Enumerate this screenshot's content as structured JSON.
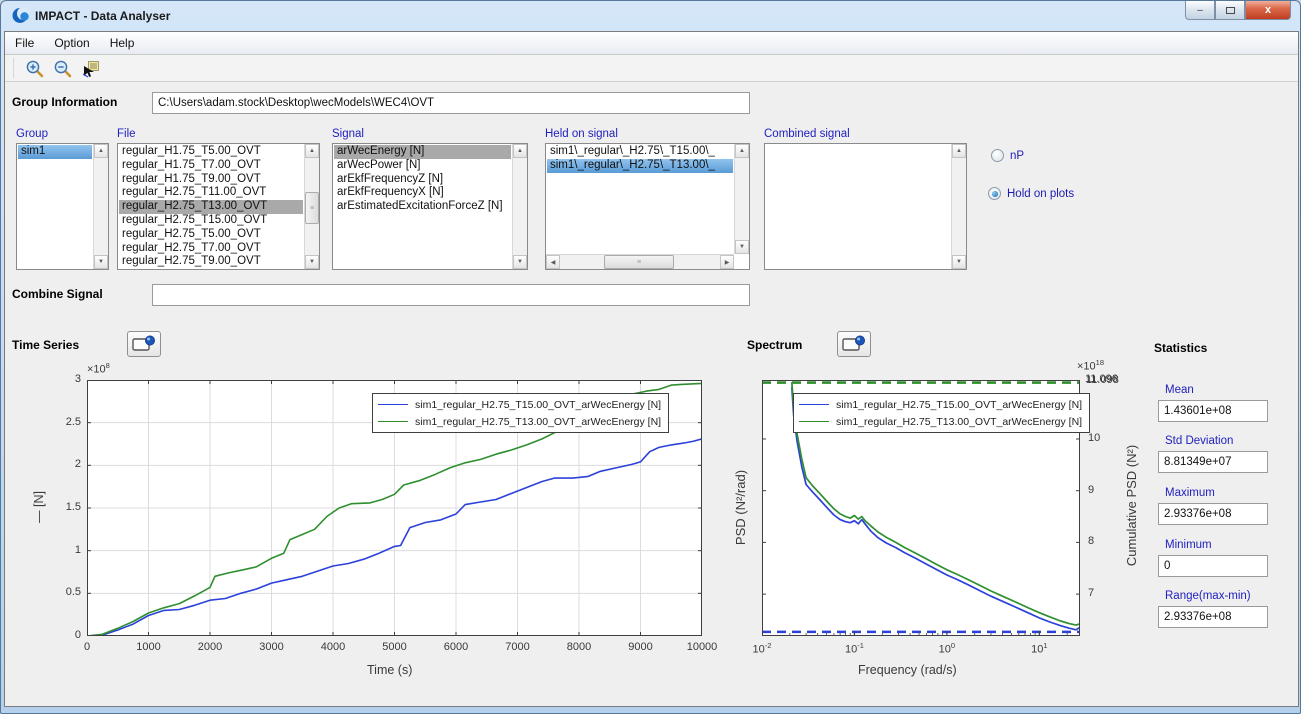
{
  "window": {
    "title": "IMPACT - Data Analyser"
  },
  "window_buttons": {
    "minimize": "–",
    "close": "x"
  },
  "menu": {
    "items": [
      "File",
      "Option",
      "Help"
    ]
  },
  "toolbar": {
    "icons": [
      "zoom-in",
      "zoom-out",
      "data-cursor"
    ]
  },
  "group_information": {
    "label": "Group Information",
    "path": "C:\\Users\\adam.stock\\Desktop\\wecModels\\WEC4\\OVT"
  },
  "lists": {
    "group": {
      "label": "Group",
      "items": [
        "sim1"
      ],
      "selected_index": 0,
      "selection": "active"
    },
    "file": {
      "label": "File",
      "selected_index": 4,
      "selection": "inactive",
      "items": [
        "regular_H1.75_T5.00_OVT",
        "regular_H1.75_T7.00_OVT",
        "regular_H1.75_T9.00_OVT",
        "regular_H2.75_T11.00_OVT",
        "regular_H2.75_T13.00_OVT",
        "regular_H2.75_T15.00_OVT",
        "regular_H2.75_T5.00_OVT",
        "regular_H2.75_T7.00_OVT",
        "regular_H2.75_T9.00_OVT"
      ]
    },
    "signal": {
      "label": "Signal",
      "selected_index": 0,
      "selection": "inactive",
      "items": [
        "arWecEnergy [N]",
        "arWecPower [N]",
        "arEkfFrequencyZ [N]",
        "arEkfFrequencyX [N]",
        "arEstimatedExcitationForceZ [N]"
      ]
    },
    "held": {
      "label": "Held on signal",
      "selected_index": 1,
      "selection": "active",
      "items": [
        "sim1\\_regular\\_H2.75\\_T15.00\\_",
        "sim1\\_regular\\_H2.75\\_T13.00\\_"
      ]
    },
    "combined": {
      "label": "Combined signal",
      "selected_index": -1,
      "selection": "none",
      "items": []
    }
  },
  "radios": [
    {
      "label": "nP",
      "selected": false
    },
    {
      "label": "Hold on plots",
      "selected": true
    }
  ],
  "combine_signal": {
    "label": "Combine Signal",
    "value": ""
  },
  "panels": {
    "time_series_label": "Time Series",
    "spectrum_label": "Spectrum",
    "statistics_label": "Statistics"
  },
  "statistics": [
    {
      "label": "Mean",
      "value": "1.43601e+08"
    },
    {
      "label": "Std Deviation",
      "value": "8.81349e+07"
    },
    {
      "label": "Maximum",
      "value": "2.93376e+08"
    },
    {
      "label": "Minimum",
      "value": "0"
    },
    {
      "label": "Range(max-min)",
      "value": "2.93376e+08"
    }
  ],
  "colors": {
    "series_blue": "#2b41d9",
    "series_green": "#2f8f2f",
    "label_blue": "#2121c0",
    "selection_blue": "#5a9bd6",
    "selection_gray": "#a9a9a9"
  },
  "chart_data": [
    {
      "type": "line",
      "title": "",
      "xlabel": "Time (s)",
      "ylabel": "— [N]",
      "y_scale": {
        "text": "×10",
        "exp": "8"
      },
      "xlim": [
        0,
        10000
      ],
      "ylim_1e8": [
        0,
        3
      ],
      "xticks": [
        0,
        1000,
        2000,
        3000,
        4000,
        5000,
        6000,
        7000,
        8000,
        9000,
        10000
      ],
      "yticks_1e8": [
        0,
        0.5,
        1,
        1.5,
        2,
        2.5,
        3
      ],
      "grid": true,
      "legend_position": "top-right-inside",
      "series": [
        {
          "name": "sim1_regular_H2.75_T15.00_OVT_arWecEnergy [N]",
          "color": "#2b41d9",
          "points_1e8": [
            [
              0,
              0
            ],
            [
              250,
              0.01
            ],
            [
              500,
              0.07
            ],
            [
              750,
              0.14
            ],
            [
              1000,
              0.24
            ],
            [
              1250,
              0.3
            ],
            [
              1500,
              0.31
            ],
            [
              1750,
              0.36
            ],
            [
              2000,
              0.42
            ],
            [
              2250,
              0.44
            ],
            [
              2500,
              0.5
            ],
            [
              2750,
              0.55
            ],
            [
              3000,
              0.62
            ],
            [
              3250,
              0.66
            ],
            [
              3500,
              0.7
            ],
            [
              3750,
              0.76
            ],
            [
              4000,
              0.82
            ],
            [
              4250,
              0.85
            ],
            [
              4500,
              0.9
            ],
            [
              4750,
              0.97
            ],
            [
              5000,
              1.05
            ],
            [
              5100,
              1.06
            ],
            [
              5250,
              1.27
            ],
            [
              5500,
              1.33
            ],
            [
              5750,
              1.36
            ],
            [
              6000,
              1.43
            ],
            [
              6150,
              1.54
            ],
            [
              6400,
              1.57
            ],
            [
              6650,
              1.6
            ],
            [
              6900,
              1.67
            ],
            [
              7150,
              1.74
            ],
            [
              7400,
              1.81
            ],
            [
              7600,
              1.85
            ],
            [
              7900,
              1.85
            ],
            [
              8150,
              1.87
            ],
            [
              8350,
              1.93
            ],
            [
              8600,
              1.97
            ],
            [
              8850,
              2.01
            ],
            [
              9000,
              2.04
            ],
            [
              9150,
              2.16
            ],
            [
              9300,
              2.21
            ],
            [
              9500,
              2.24
            ],
            [
              9700,
              2.26
            ],
            [
              9850,
              2.28
            ],
            [
              10000,
              2.31
            ]
          ]
        },
        {
          "name": "sim1_regular_H2.75_T13.00_OVT_arWecEnergy [N]",
          "color": "#2f8f2f",
          "points_1e8": [
            [
              0,
              0
            ],
            [
              250,
              0.02
            ],
            [
              500,
              0.09
            ],
            [
              750,
              0.17
            ],
            [
              1000,
              0.27
            ],
            [
              1250,
              0.33
            ],
            [
              1500,
              0.38
            ],
            [
              1750,
              0.47
            ],
            [
              2000,
              0.57
            ],
            [
              2080,
              0.7
            ],
            [
              2300,
              0.74
            ],
            [
              2500,
              0.77
            ],
            [
              2750,
              0.81
            ],
            [
              3000,
              0.91
            ],
            [
              3200,
              0.97
            ],
            [
              3300,
              1.13
            ],
            [
              3500,
              1.19
            ],
            [
              3700,
              1.25
            ],
            [
              3900,
              1.4
            ],
            [
              4100,
              1.5
            ],
            [
              4300,
              1.55
            ],
            [
              4600,
              1.56
            ],
            [
              4800,
              1.6
            ],
            [
              5000,
              1.66
            ],
            [
              5150,
              1.77
            ],
            [
              5400,
              1.82
            ],
            [
              5650,
              1.89
            ],
            [
              5900,
              1.97
            ],
            [
              6150,
              2.03
            ],
            [
              6400,
              2.07
            ],
            [
              6650,
              2.13
            ],
            [
              6900,
              2.18
            ],
            [
              7150,
              2.24
            ],
            [
              7400,
              2.31
            ],
            [
              7650,
              2.4
            ],
            [
              7900,
              2.49
            ],
            [
              8100,
              2.56
            ],
            [
              8300,
              2.67
            ],
            [
              8500,
              2.76
            ],
            [
              8700,
              2.81
            ],
            [
              8900,
              2.84
            ],
            [
              9100,
              2.87
            ],
            [
              9300,
              2.89
            ],
            [
              9500,
              2.94
            ],
            [
              9700,
              2.95
            ],
            [
              10000,
              2.96
            ]
          ]
        }
      ]
    },
    {
      "type": "line",
      "x_scale": "log",
      "xlabel": "Frequency (rad/s)",
      "ylabel_left": "PSD (N²/rad)",
      "ylabel_right": "Cumulative PSD (N²)",
      "right_scale": {
        "text": "×10",
        "exp": "18"
      },
      "xlim_exp": [
        -2,
        1.44
      ],
      "xticks_exp": [
        -2,
        -1,
        0,
        1
      ],
      "right_ylim_1e18": [
        6.19,
        11.14
      ],
      "right_yticks_1e18": [
        7,
        8,
        9,
        10
      ],
      "right_top_values_1e18": [
        "11.096",
        "11.098"
      ],
      "grid": false,
      "legend_position": "top-inside",
      "series": [
        {
          "name": "sim1_regular_H2.75_T15.00_OVT_arWecEnergy [N]",
          "color": "#2b41d9",
          "style": "solid",
          "points": [
            [
              0.021,
              11.0
            ],
            [
              0.022,
              10.45
            ],
            [
              0.024,
              9.95
            ],
            [
              0.027,
              9.45
            ],
            [
              0.03,
              9.12
            ],
            [
              0.035,
              8.98
            ],
            [
              0.042,
              8.83
            ],
            [
              0.05,
              8.68
            ],
            [
              0.06,
              8.53
            ],
            [
              0.07,
              8.44
            ],
            [
              0.08,
              8.4
            ],
            [
              0.09,
              8.38
            ],
            [
              0.1,
              8.42
            ],
            [
              0.11,
              8.36
            ],
            [
              0.12,
              8.44
            ],
            [
              0.13,
              8.36
            ],
            [
              0.15,
              8.22
            ],
            [
              0.18,
              8.09
            ],
            [
              0.22,
              7.99
            ],
            [
              0.28,
              7.9
            ],
            [
              0.35,
              7.8
            ],
            [
              0.45,
              7.7
            ],
            [
              0.6,
              7.58
            ],
            [
              0.8,
              7.46
            ],
            [
              1.0,
              7.37
            ],
            [
              1.3,
              7.28
            ],
            [
              1.7,
              7.18
            ],
            [
              2.2,
              7.08
            ],
            [
              3,
              6.96
            ],
            [
              4,
              6.86
            ],
            [
              5.5,
              6.75
            ],
            [
              7.5,
              6.64
            ],
            [
              10,
              6.54
            ],
            [
              13,
              6.46
            ],
            [
              17,
              6.39
            ],
            [
              21,
              6.34
            ],
            [
              25,
              6.31
            ],
            [
              27,
              6.35
            ]
          ]
        },
        {
          "name": "sim1_regular_H2.75_T13.00_OVT_arWecEnergy [N]",
          "color": "#2f8f2f",
          "style": "solid",
          "points": [
            [
              0.021,
              11.1
            ],
            [
              0.022,
              10.6
            ],
            [
              0.024,
              10.1
            ],
            [
              0.027,
              9.6
            ],
            [
              0.03,
              9.25
            ],
            [
              0.035,
              9.1
            ],
            [
              0.042,
              8.95
            ],
            [
              0.05,
              8.8
            ],
            [
              0.06,
              8.65
            ],
            [
              0.07,
              8.55
            ],
            [
              0.08,
              8.5
            ],
            [
              0.09,
              8.47
            ],
            [
              0.1,
              8.52
            ],
            [
              0.11,
              8.45
            ],
            [
              0.12,
              8.5
            ],
            [
              0.13,
              8.42
            ],
            [
              0.15,
              8.32
            ],
            [
              0.18,
              8.2
            ],
            [
              0.22,
              8.1
            ],
            [
              0.28,
              8.0
            ],
            [
              0.35,
              7.9
            ],
            [
              0.45,
              7.8
            ],
            [
              0.6,
              7.68
            ],
            [
              0.8,
              7.56
            ],
            [
              1.0,
              7.47
            ],
            [
              1.3,
              7.38
            ],
            [
              1.7,
              7.28
            ],
            [
              2.2,
              7.18
            ],
            [
              3,
              7.06
            ],
            [
              4,
              6.96
            ],
            [
              5.5,
              6.85
            ],
            [
              7.5,
              6.74
            ],
            [
              10,
              6.64
            ],
            [
              13,
              6.56
            ],
            [
              17,
              6.48
            ],
            [
              21,
              6.43
            ],
            [
              25,
              6.4
            ],
            [
              27,
              6.42
            ]
          ]
        }
      ],
      "cumulative_lines": [
        {
          "name": "cumulative T15 (blue dashed)",
          "color": "#2b41d9",
          "style": "dashed",
          "y_1e18": 6.27
        },
        {
          "name": "cumulative T13 (green dashed)",
          "color": "#2f8f2f",
          "style": "dashed",
          "y_1e18": 11.09
        }
      ]
    }
  ]
}
